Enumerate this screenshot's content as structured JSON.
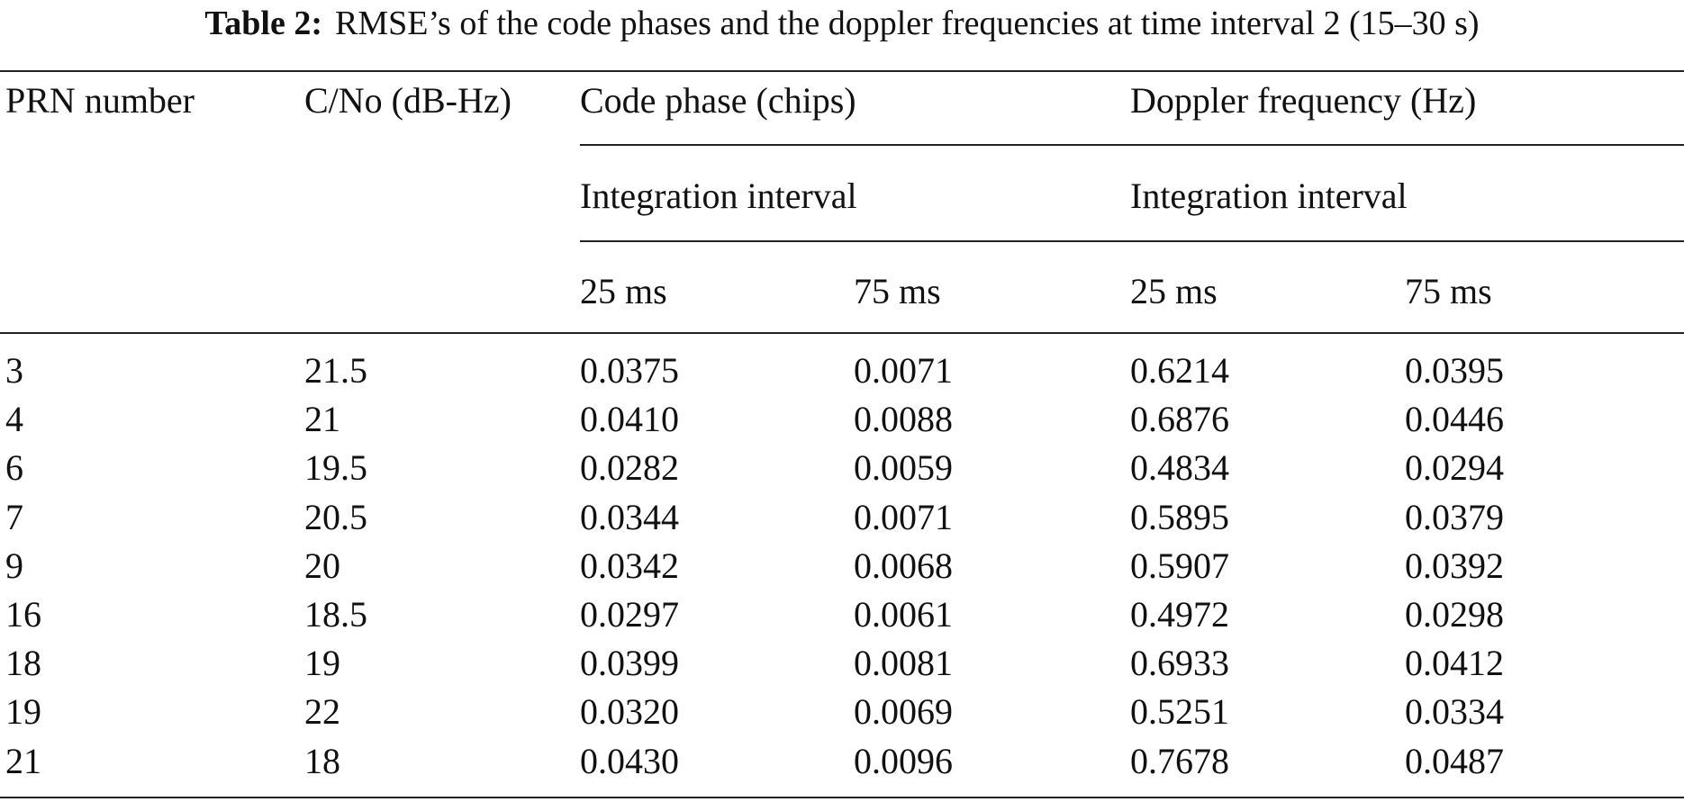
{
  "caption": {
    "label": "Table 2:",
    "text": "RMSE’s of the code phases and the doppler frequencies at time interval 2 (15–30 s)"
  },
  "table": {
    "headers": [
      "PRN number",
      "C/No (dB-Hz)",
      "Code phase (chips)",
      "Doppler frequency (Hz)"
    ],
    "subheaders": [
      "Integration interval",
      "Integration interval"
    ],
    "units": [
      "25 ms",
      "75 ms",
      "25 ms",
      "75 ms"
    ],
    "rows": [
      [
        "3",
        "21.5",
        "0.0375",
        "0.0071",
        "0.6214",
        "0.0395"
      ],
      [
        "4",
        "21",
        "0.0410",
        "0.0088",
        "0.6876",
        "0.0446"
      ],
      [
        "6",
        "19.5",
        "0.0282",
        "0.0059",
        "0.4834",
        "0.0294"
      ],
      [
        "7",
        "20.5",
        "0.0344",
        "0.0071",
        "0.5895",
        "0.0379"
      ],
      [
        "9",
        "20",
        "0.0342",
        "0.0068",
        "0.5907",
        "0.0392"
      ],
      [
        "16",
        "18.5",
        "0.0297",
        "0.0061",
        "0.4972",
        "0.0298"
      ],
      [
        "18",
        "19",
        "0.0399",
        "0.0081",
        "0.6933",
        "0.0412"
      ],
      [
        "19",
        "22",
        "0.0320",
        "0.0069",
        "0.5251",
        "0.0334"
      ],
      [
        "21",
        "18",
        "0.0430",
        "0.0096",
        "0.7678",
        "0.0487"
      ]
    ]
  }
}
